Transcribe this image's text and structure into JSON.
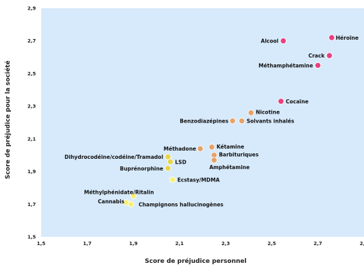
{
  "chart_data": {
    "type": "scatter",
    "title": "",
    "xlabel": "Score de préjudice personnel",
    "ylabel": "Score de préjudice pour la société",
    "xlim": [
      1.5,
      2.9
    ],
    "ylim": [
      1.5,
      2.9
    ],
    "x_ticks": [
      "1,5",
      "1,7",
      "1,9",
      "2,1",
      "2,3",
      "2,5",
      "2,7",
      "2,9"
    ],
    "y_ticks": [
      "1,5",
      "1,7",
      "1,9",
      "2,1",
      "2,3",
      "2,5",
      "2,7",
      "2,9"
    ],
    "grid": false,
    "colors": {
      "background": "#d7eafb",
      "illicit": "#e8417f",
      "mid": "#e5a36a",
      "low": "#e6d54a",
      "light": "#f5f07a"
    },
    "points": [
      {
        "name": "Héroïne",
        "x": 2.76,
        "y": 2.72,
        "color": "illicit"
      },
      {
        "name": "Alcool",
        "x": 2.55,
        "y": 2.7,
        "color": "illicit"
      },
      {
        "name": "Crack",
        "x": 2.75,
        "y": 2.61,
        "color": "illicit"
      },
      {
        "name": "Méthamphétamine",
        "x": 2.7,
        "y": 2.55,
        "color": "illicit"
      },
      {
        "name": "Cocaïne",
        "x": 2.54,
        "y": 2.33,
        "color": "illicit"
      },
      {
        "name": "Nicotine",
        "x": 2.41,
        "y": 2.26,
        "color": "mid"
      },
      {
        "name": "Solvants inhalés",
        "x": 2.37,
        "y": 2.21,
        "color": "mid"
      },
      {
        "name": "Benzodiazépines",
        "x": 2.33,
        "y": 2.21,
        "color": "mid"
      },
      {
        "name": "Kétamine",
        "x": 2.24,
        "y": 2.05,
        "color": "mid"
      },
      {
        "name": "Méthadone",
        "x": 2.19,
        "y": 2.04,
        "color": "mid"
      },
      {
        "name": "Barbituriques",
        "x": 2.25,
        "y": 2.0,
        "color": "mid"
      },
      {
        "name": "Amphétamine",
        "x": 2.25,
        "y": 1.97,
        "color": "mid"
      },
      {
        "name": "Dihydrocodéine/codéine/Tramadol",
        "x": 2.05,
        "y": 1.99,
        "color": "low"
      },
      {
        "name": "LSD",
        "x": 2.06,
        "y": 1.96,
        "color": "low"
      },
      {
        "name": "Buprénorphine",
        "x": 2.05,
        "y": 1.92,
        "color": "low"
      },
      {
        "name": "Ecstasy/MDMA",
        "x": 2.07,
        "y": 1.85,
        "color": "light"
      },
      {
        "name": "Méthylphénidate/Ritalin",
        "x": 1.9,
        "y": 1.75,
        "color": "light"
      },
      {
        "name": "Cannabis",
        "x": 1.87,
        "y": 1.71,
        "color": "light"
      },
      {
        "name": "Champignons hallucinogènes",
        "x": 1.89,
        "y": 1.7,
        "color": "light"
      }
    ]
  }
}
